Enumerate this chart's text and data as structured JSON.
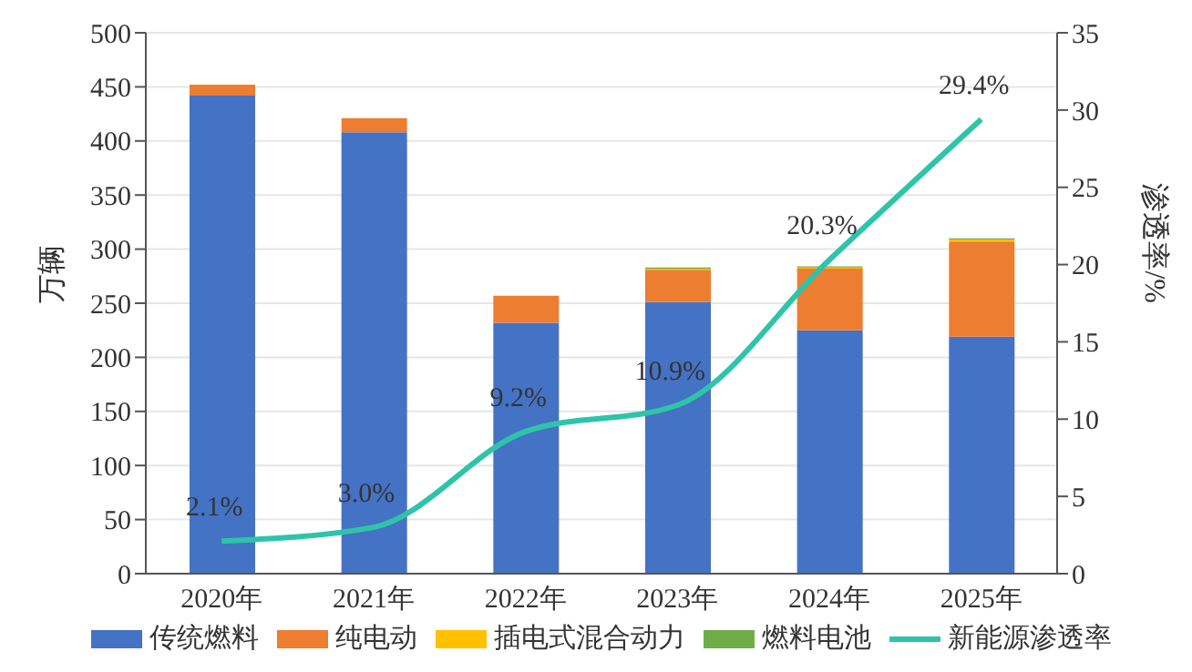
{
  "chart_data": {
    "type": "bar",
    "stacked": true,
    "categories": [
      "2020年",
      "2021年",
      "2022年",
      "2023年",
      "2024年",
      "2025年"
    ],
    "series": [
      {
        "name": "传统燃料",
        "color": "#4472c4",
        "values": [
          442,
          408,
          232,
          251,
          225,
          219
        ]
      },
      {
        "name": "纯电动",
        "color": "#ed7d31",
        "values": [
          10,
          13,
          25,
          30,
          57,
          88
        ]
      },
      {
        "name": "插电式混合动力",
        "color": "#ffc000",
        "values": [
          0,
          0,
          0,
          1,
          1,
          2
        ]
      },
      {
        "name": "燃料电池",
        "color": "#70ad47",
        "values": [
          0,
          0,
          0,
          1,
          1,
          1
        ]
      },
      {
        "name": "新能源渗透率",
        "type": "line",
        "axis": "y2",
        "color": "#2ec4a9",
        "values": [
          2.1,
          3.0,
          9.2,
          10.9,
          20.3,
          29.4
        ],
        "value_labels": [
          "2.1%",
          "3.0%",
          "9.2%",
          "10.9%",
          "20.3%",
          "29.4%"
        ]
      }
    ],
    "ylabel": "万辆",
    "y2label": "渗透率/%",
    "ylim": [
      0,
      500
    ],
    "yticks": [
      0,
      50,
      100,
      150,
      200,
      250,
      300,
      350,
      400,
      450,
      500
    ],
    "y2lim": [
      0,
      35
    ],
    "y2ticks": [
      0,
      5,
      10,
      15,
      20,
      25,
      30,
      35
    ],
    "grid": "y",
    "legend": "bottom"
  }
}
